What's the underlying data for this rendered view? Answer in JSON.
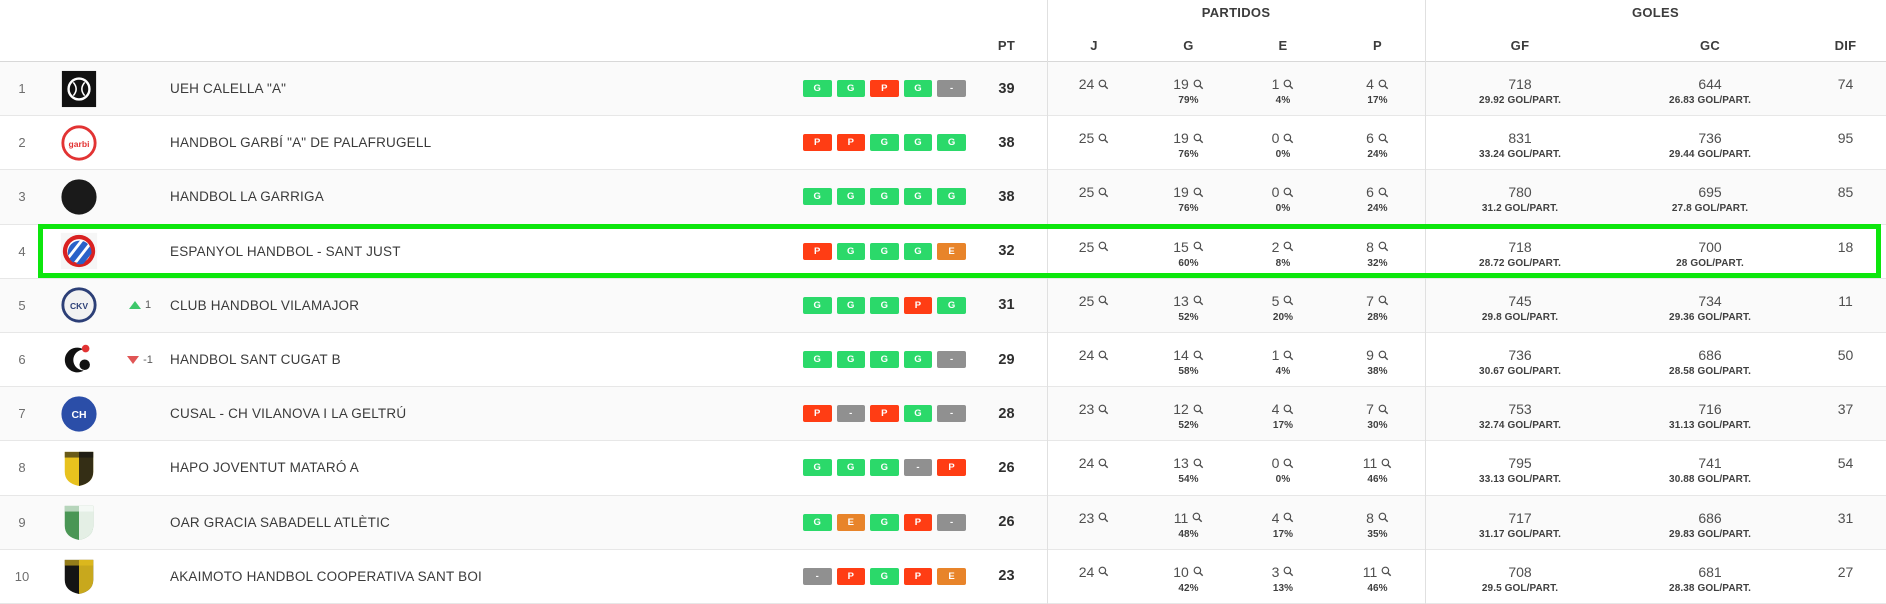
{
  "header": {
    "groups": [
      {
        "label": "PARTIDOS"
      },
      {
        "label": "GOLES"
      }
    ],
    "columns": {
      "pt": "PT",
      "j": "J",
      "g": "G",
      "e": "E",
      "p": "P",
      "gf": "GF",
      "gc": "GC",
      "dif": "DIF"
    }
  },
  "colors": {
    "win": "#2BD96A",
    "loss": "#FF3D14",
    "draw": "#E8842A",
    "empty": "#909090",
    "highlight": "#0DE60D",
    "up": "#3DC76A",
    "down": "#E05555"
  },
  "rows": [
    {
      "pos": "1",
      "team": "UEH CALELLA \"A\"",
      "change": null,
      "highlight": false,
      "logo": {
        "icon": "ueh-calella-crest",
        "kind": "square",
        "bg": "#111111",
        "accent": "#ffffff",
        "initials": ""
      },
      "form": [
        "G",
        "G",
        "P",
        "G",
        "-"
      ],
      "pt": "39",
      "j": "24",
      "g": "19",
      "g_pct": "79%",
      "e": "1",
      "e_pct": "4%",
      "p": "4",
      "p_pct": "17%",
      "gf": "718",
      "gf_avg": "29.92 GOL/PART.",
      "gc": "644",
      "gc_avg": "26.83 GOL/PART.",
      "dif": "74"
    },
    {
      "pos": "2",
      "team": "HANDBOL GARBÍ \"A\" DE PALAFRUGELL",
      "change": null,
      "highlight": false,
      "logo": {
        "icon": "garbi-palafrugell-crest",
        "kind": "circle",
        "bg": "#ffffff",
        "accent": "#e23333",
        "border": "#e23333",
        "initials": "garbi"
      },
      "form": [
        "P",
        "P",
        "G",
        "G",
        "G"
      ],
      "pt": "38",
      "j": "25",
      "g": "19",
      "g_pct": "76%",
      "e": "0",
      "e_pct": "0%",
      "p": "6",
      "p_pct": "24%",
      "gf": "831",
      "gf_avg": "33.24 GOL/PART.",
      "gc": "736",
      "gc_avg": "29.44 GOL/PART.",
      "dif": "95"
    },
    {
      "pos": "3",
      "team": "HANDBOL LA GARRIGA",
      "change": null,
      "highlight": false,
      "logo": {
        "icon": "la-garriga-crest",
        "kind": "circle",
        "bg": "#1a1a1a",
        "accent": "#e8b42a",
        "border": "#1a1a1a",
        "initials": ""
      },
      "form": [
        "G",
        "G",
        "G",
        "G",
        "G"
      ],
      "pt": "38",
      "j": "25",
      "g": "19",
      "g_pct": "76%",
      "e": "0",
      "e_pct": "0%",
      "p": "6",
      "p_pct": "24%",
      "gf": "780",
      "gf_avg": "31.2 GOL/PART.",
      "gc": "695",
      "gc_avg": "27.8 GOL/PART.",
      "dif": "85"
    },
    {
      "pos": "4",
      "team": "ESPANYOL HANDBOL - SANT JUST",
      "change": null,
      "highlight": true,
      "logo": {
        "icon": "espanyol-crest",
        "kind": "espanyol",
        "bg": "#ffffff",
        "accent": "#2a62c9",
        "border": "#d92121",
        "initials": ""
      },
      "form": [
        "P",
        "G",
        "G",
        "G",
        "E"
      ],
      "pt": "32",
      "j": "25",
      "g": "15",
      "g_pct": "60%",
      "e": "2",
      "e_pct": "8%",
      "p": "8",
      "p_pct": "32%",
      "gf": "718",
      "gf_avg": "28.72 GOL/PART.",
      "gc": "700",
      "gc_avg": "28 GOL/PART.",
      "dif": "18"
    },
    {
      "pos": "5",
      "team": "CLUB HANDBOL VILAMAJOR",
      "change": {
        "dir": "up",
        "value": "1"
      },
      "highlight": false,
      "logo": {
        "icon": "vilamajor-crest",
        "kind": "circle",
        "bg": "#f2f2f2",
        "accent": "#2c3f77",
        "border": "#2c3f77",
        "initials": "CKV"
      },
      "form": [
        "G",
        "G",
        "G",
        "P",
        "G"
      ],
      "pt": "31",
      "j": "25",
      "g": "13",
      "g_pct": "52%",
      "e": "5",
      "e_pct": "20%",
      "p": "7",
      "p_pct": "28%",
      "gf": "745",
      "gf_avg": "29.8 GOL/PART.",
      "gc": "734",
      "gc_avg": "29.36 GOL/PART.",
      "dif": "11"
    },
    {
      "pos": "6",
      "team": "HANDBOL SANT CUGAT B",
      "change": {
        "dir": "down",
        "value": "-1"
      },
      "highlight": false,
      "logo": {
        "icon": "sant-cugat-crest",
        "kind": "cugat",
        "bg": "#ffffff",
        "accent": "#111111",
        "border": "#e23333",
        "initials": ""
      },
      "form": [
        "G",
        "G",
        "G",
        "G",
        "-"
      ],
      "pt": "29",
      "j": "24",
      "g": "14",
      "g_pct": "58%",
      "e": "1",
      "e_pct": "4%",
      "p": "9",
      "p_pct": "38%",
      "gf": "736",
      "gf_avg": "30.67 GOL/PART.",
      "gc": "686",
      "gc_avg": "28.58 GOL/PART.",
      "dif": "50"
    },
    {
      "pos": "7",
      "team": "CUSAL - CH VILANOVA I LA GELTRÚ",
      "change": null,
      "highlight": false,
      "logo": {
        "icon": "ch-vilanova-crest",
        "kind": "circle",
        "bg": "#2b4ea8",
        "accent": "#ffffff",
        "border": "#2b4ea8",
        "initials": "CH"
      },
      "form": [
        "P",
        "-",
        "P",
        "G",
        "-"
      ],
      "pt": "28",
      "j": "23",
      "g": "12",
      "g_pct": "52%",
      "e": "4",
      "e_pct": "17%",
      "p": "7",
      "p_pct": "30%",
      "gf": "753",
      "gf_avg": "32.74 GOL/PART.",
      "gc": "716",
      "gc_avg": "31.13 GOL/PART.",
      "dif": "37"
    },
    {
      "pos": "8",
      "team": "HAPO JOVENTUT MATARÓ A",
      "change": null,
      "highlight": false,
      "logo": {
        "icon": "joventut-mataro-crest",
        "kind": "shield",
        "bg": "#e8c21e",
        "accent": "#141414",
        "initials": ""
      },
      "form": [
        "G",
        "G",
        "G",
        "-",
        "P"
      ],
      "pt": "26",
      "j": "24",
      "g": "13",
      "g_pct": "54%",
      "e": "0",
      "e_pct": "0%",
      "p": "11",
      "p_pct": "46%",
      "gf": "795",
      "gf_avg": "33.13 GOL/PART.",
      "gc": "741",
      "gc_avg": "30.88 GOL/PART.",
      "dif": "54"
    },
    {
      "pos": "9",
      "team": "OAR GRACIA SABADELL ATLÈTIC",
      "change": null,
      "highlight": false,
      "logo": {
        "icon": "oar-gracia-sabadell-crest",
        "kind": "shield",
        "bg": "#4a9655",
        "accent": "#ffffff",
        "initials": ""
      },
      "form": [
        "G",
        "E",
        "G",
        "P",
        "-"
      ],
      "pt": "26",
      "j": "23",
      "g": "11",
      "g_pct": "48%",
      "e": "4",
      "e_pct": "17%",
      "p": "8",
      "p_pct": "35%",
      "gf": "717",
      "gf_avg": "31.17 GOL/PART.",
      "gc": "686",
      "gc_avg": "29.83 GOL/PART.",
      "dif": "31"
    },
    {
      "pos": "10",
      "team": "AKAIMOTO HANDBOL COOPERATIVA SANT BOI",
      "change": null,
      "highlight": false,
      "logo": {
        "icon": "sant-boi-crest",
        "kind": "shield",
        "bg": "#141414",
        "accent": "#e8c21e",
        "initials": ""
      },
      "form": [
        "-",
        "P",
        "G",
        "P",
        "E"
      ],
      "pt": "23",
      "j": "24",
      "g": "10",
      "g_pct": "42%",
      "e": "3",
      "e_pct": "13%",
      "p": "11",
      "p_pct": "46%",
      "gf": "708",
      "gf_avg": "29.5 GOL/PART.",
      "gc": "681",
      "gc_avg": "28.38 GOL/PART.",
      "dif": "27"
    }
  ]
}
